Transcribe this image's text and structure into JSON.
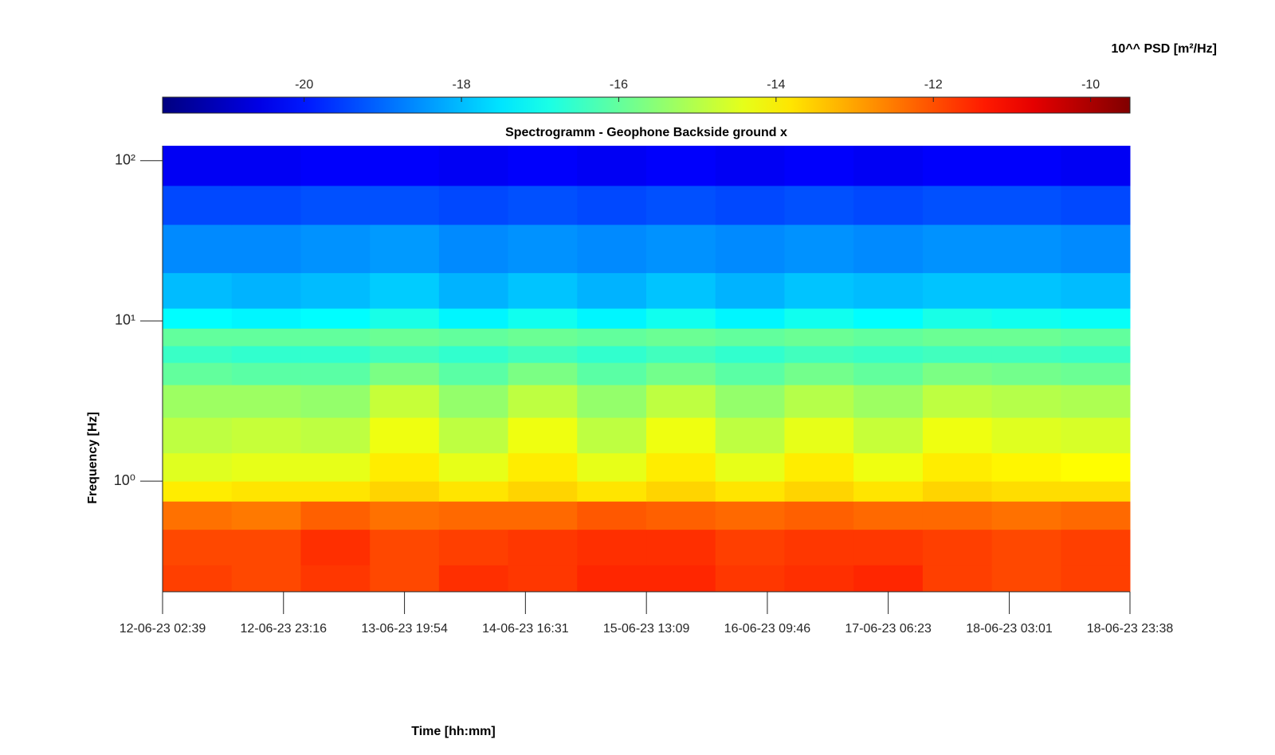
{
  "chart_data": {
    "type": "heatmap",
    "title": "Spectrogramm - Geophone Backside ground x",
    "xlabel": "Time [hh:mm]",
    "ylabel": "Frequency [Hz]",
    "colorbar_label": "10^^ PSD [m²/Hz]",
    "colormap": "jet",
    "clim": [
      -21.8,
      -9.5
    ],
    "cticks": [
      -20,
      -18,
      -16,
      -14,
      -12,
      -10
    ],
    "yscale": "log",
    "ylim": [
      0.204,
      124
    ],
    "yticks": [
      {
        "value": 1,
        "label": "10⁰"
      },
      {
        "value": 10,
        "label": "10¹"
      },
      {
        "value": 100,
        "label": "10²"
      }
    ],
    "xlim": [
      0,
      164.95
    ],
    "xticks": [
      {
        "value": 0,
        "label": "12-06-23 02:39"
      },
      {
        "value": 20.62,
        "label": "12-06-23 23:16"
      },
      {
        "value": 41.25,
        "label": "13-06-23 19:54"
      },
      {
        "value": 61.87,
        "label": "14-06-23 16:31"
      },
      {
        "value": 82.5,
        "label": "15-06-23 13:09"
      },
      {
        "value": 103.12,
        "label": "16-06-23 09:46"
      },
      {
        "value": 123.73,
        "label": "17-06-23 06:23"
      },
      {
        "value": 144.37,
        "label": "18-06-23 03:01"
      },
      {
        "value": 164.95,
        "label": "18-06-23 23:38"
      }
    ],
    "x_edges": [
      0,
      11.78,
      23.56,
      35.35,
      47.13,
      58.91,
      70.69,
      82.48,
      94.26,
      106.04,
      117.82,
      129.61,
      141.39,
      153.17,
      164.95
    ],
    "y_edges": [
      0.204,
      0.3,
      0.5,
      0.75,
      1,
      1.5,
      2.5,
      4,
      5.5,
      7,
      9,
      12,
      20,
      40,
      70,
      124
    ],
    "values": [
      [
        -11.8,
        -11.9,
        -11.7,
        -11.9,
        -11.6,
        -11.7,
        -11.5,
        -11.5,
        -11.7,
        -11.6,
        -11.5,
        -11.8,
        -11.9,
        -11.8
      ],
      [
        -11.9,
        -11.9,
        -11.6,
        -11.9,
        -11.8,
        -11.7,
        -11.6,
        -11.6,
        -11.8,
        -11.7,
        -11.7,
        -11.8,
        -11.9,
        -11.8
      ],
      [
        -12.4,
        -12.5,
        -12.2,
        -12.4,
        -12.3,
        -12.3,
        -12.1,
        -12.2,
        -12.3,
        -12.2,
        -12.3,
        -12.3,
        -12.4,
        -12.3
      ],
      [
        -13.9,
        -13.8,
        -13.8,
        -13.6,
        -13.8,
        -13.6,
        -13.8,
        -13.6,
        -13.8,
        -13.6,
        -13.8,
        -13.6,
        -13.7,
        -13.7
      ],
      [
        -14.5,
        -14.4,
        -14.4,
        -13.9,
        -14.4,
        -13.9,
        -14.4,
        -13.9,
        -14.4,
        -13.9,
        -14.3,
        -13.9,
        -14.0,
        -14.1
      ],
      [
        -14.9,
        -14.8,
        -14.9,
        -14.3,
        -14.9,
        -14.3,
        -14.9,
        -14.3,
        -14.9,
        -14.4,
        -14.8,
        -14.3,
        -14.5,
        -14.6
      ],
      [
        -15.3,
        -15.3,
        -15.4,
        -14.8,
        -15.4,
        -14.9,
        -15.4,
        -14.9,
        -15.4,
        -15.0,
        -15.3,
        -14.9,
        -15.0,
        -15.1
      ],
      [
        -16.0,
        -16.1,
        -16.1,
        -15.7,
        -16.1,
        -15.7,
        -16.1,
        -15.8,
        -16.1,
        -15.8,
        -16.0,
        -15.7,
        -15.8,
        -15.9
      ],
      [
        -16.5,
        -16.6,
        -16.6,
        -16.4,
        -16.6,
        -16.4,
        -16.6,
        -16.4,
        -16.6,
        -16.4,
        -16.5,
        -16.4,
        -16.4,
        -16.5
      ],
      [
        -16.0,
        -16.0,
        -16.0,
        -15.9,
        -16.0,
        -15.9,
        -16.0,
        -15.9,
        -16.0,
        -15.9,
        -16.0,
        -15.9,
        -15.9,
        -16.0
      ],
      [
        -17.2,
        -17.3,
        -17.2,
        -16.9,
        -17.3,
        -17.0,
        -17.3,
        -17.0,
        -17.3,
        -17.0,
        -17.2,
        -16.9,
        -17.0,
        -17.1
      ],
      [
        -18.0,
        -18.1,
        -18.0,
        -17.8,
        -18.1,
        -17.9,
        -18.1,
        -17.9,
        -18.1,
        -17.9,
        -18.0,
        -17.9,
        -17.9,
        -18.0
      ],
      [
        -18.6,
        -18.6,
        -18.5,
        -18.4,
        -18.6,
        -18.5,
        -18.6,
        -18.5,
        -18.6,
        -18.5,
        -18.6,
        -18.5,
        -18.5,
        -18.6
      ],
      [
        -19.4,
        -19.4,
        -19.3,
        -19.3,
        -19.4,
        -19.3,
        -19.4,
        -19.3,
        -19.4,
        -19.3,
        -19.4,
        -19.3,
        -19.3,
        -19.4
      ],
      [
        -20.4,
        -20.4,
        -20.3,
        -20.3,
        -20.4,
        -20.3,
        -20.4,
        -20.3,
        -20.4,
        -20.3,
        -20.4,
        -20.3,
        -20.3,
        -20.4
      ]
    ]
  }
}
